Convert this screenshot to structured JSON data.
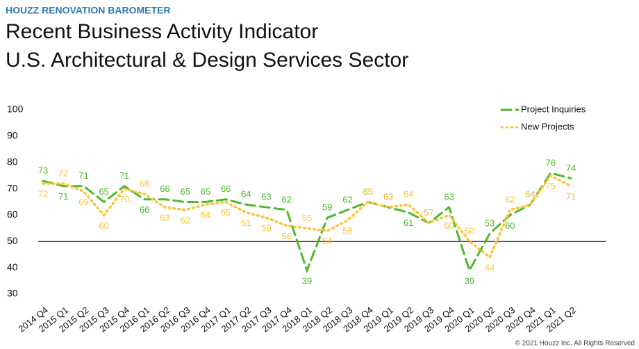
{
  "chart_data": {
    "type": "line",
    "kicker": "HOUZZ RENOVATION BAROMETER",
    "title": "Recent Business Activity Indicator",
    "subtitle": "U.S. Architectural & Design Services Sector",
    "footer": "© 2021 Houzz Inc. All Rights Reserved",
    "categories": [
      "2014 Q4",
      "2015 Q1",
      "2015 Q2",
      "2015 Q3",
      "2015 Q4",
      "2016 Q1",
      "2016 Q2",
      "2016 Q3",
      "2016 Q4",
      "2017 Q1",
      "2017 Q2",
      "2017 Q3",
      "2017 Q4",
      "2018 Q1",
      "2018 Q2",
      "2018 Q3",
      "2018 Q4",
      "2019 Q1",
      "2019 Q2",
      "2019 Q3",
      "2019 Q4",
      "2020 Q1",
      "2020 Q2",
      "2020 Q3",
      "2020 Q4",
      "2021 Q1",
      "2021 Q2"
    ],
    "series": [
      {
        "name": "Project Inquiries",
        "color": "#4cb82a",
        "dash": "dashed",
        "values": [
          73,
          71,
          71,
          65,
          71,
          66,
          66,
          65,
          65,
          66,
          64,
          63,
          62,
          39,
          59,
          62,
          65,
          63,
          61,
          57,
          63,
          39,
          53,
          60,
          64,
          76,
          74
        ]
      },
      {
        "name": "New Projects",
        "color": "#fcc43c",
        "dash": "dotted",
        "values": [
          72,
          72,
          69,
          60,
          70,
          68,
          63,
          62,
          64,
          65,
          61,
          59,
          56,
          55,
          54,
          58,
          65,
          63,
          64,
          57,
          60,
          50,
          44,
          62,
          64,
          75,
          71
        ]
      }
    ],
    "ylim": [
      30,
      100
    ],
    "yticks": [
      30,
      40,
      50,
      60,
      70,
      80,
      90,
      100
    ],
    "reference_line": 50,
    "legend": "upper right"
  }
}
